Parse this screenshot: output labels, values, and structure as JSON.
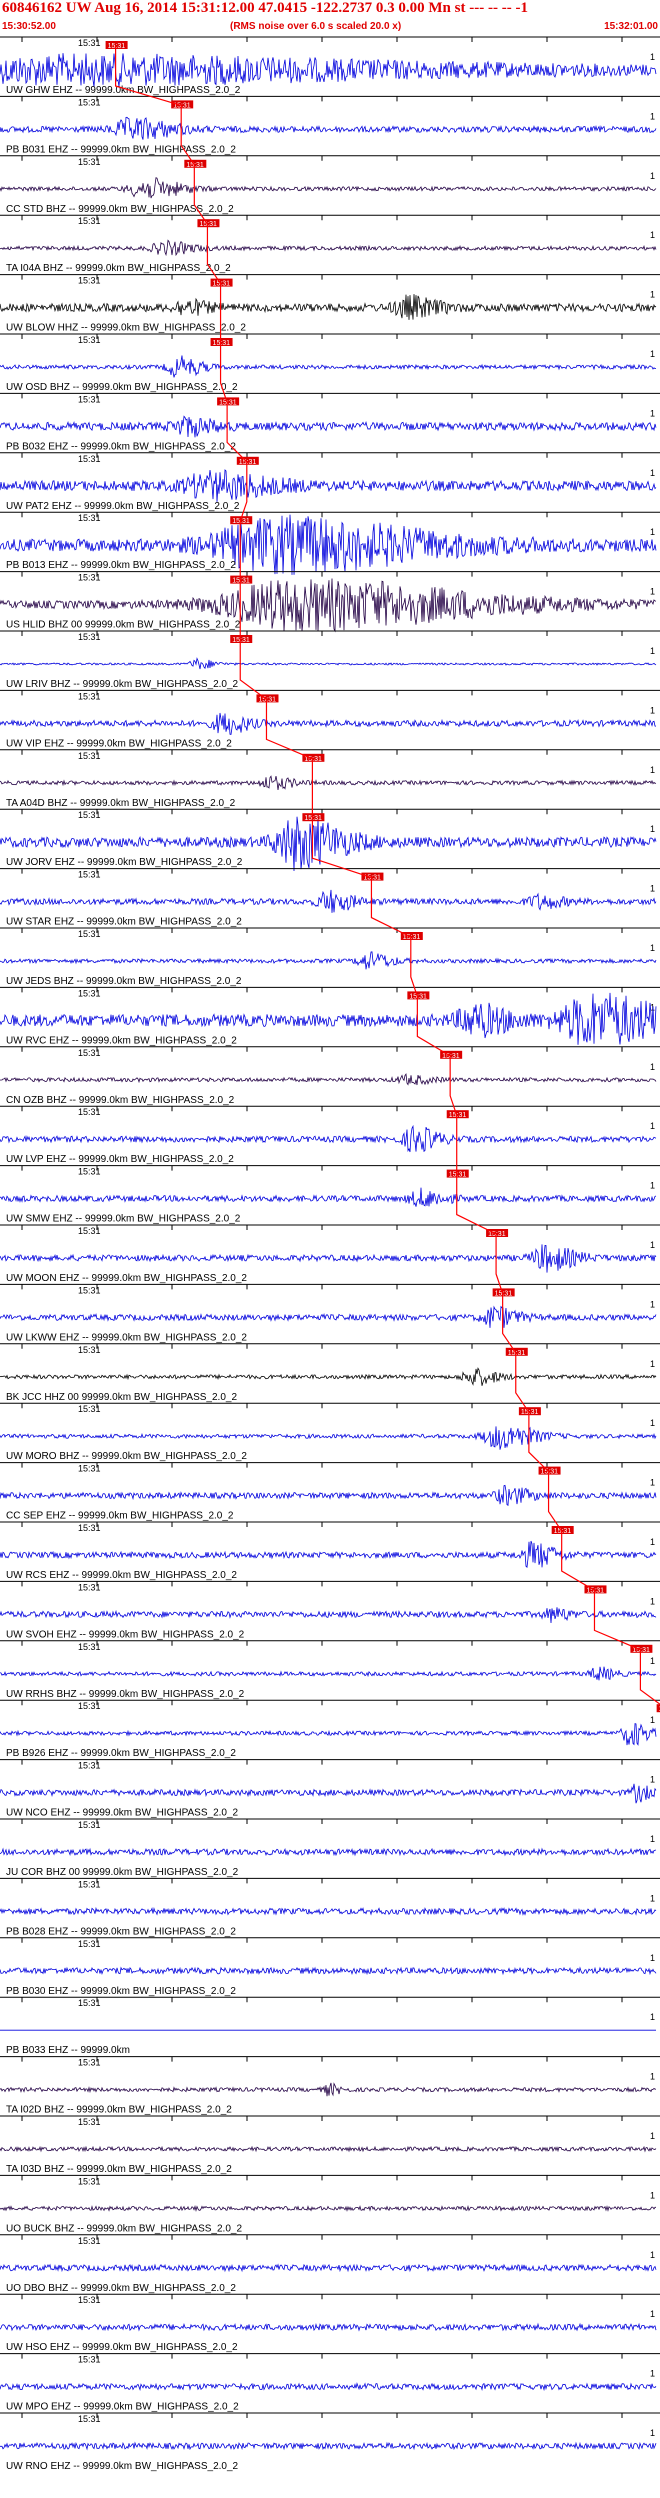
{
  "header": {
    "title": "60846162 UW Aug 16, 2014 15:31:12.00   47.0415 -122.2737   0.3  0.00 Mn st --- -- --  -1",
    "start_time": "15:30:52.00",
    "note": "(RMS noise over 6.0 s scaled 20.0 x)",
    "end_time": "15:32:01.00"
  },
  "colors": {
    "blue": "#0000dd",
    "dark": "#220044",
    "black": "#000000",
    "pick": "#dd0000",
    "line": "#ff0000"
  },
  "chart_data": {
    "type": "line",
    "title": "60846162 UW Aug 16, 2014 15:31:12.00   47.0415 -122.2737   0.3  0.00 Mn st --- -- --  -1",
    "x_range": [
      "15:30:52.00",
      "15:32:01.00"
    ],
    "tick_label": "15:31",
    "end_label": "1",
    "series": [
      {
        "name": "UW GHW EHZ -- 99999.0km BW_HIGHPASS_2.0_2",
        "color": "blue",
        "amp": 5,
        "pick": 0.1,
        "burst": [
          0.11,
          0.55,
          12
        ],
        "burst2": null
      },
      {
        "name": "PB B031 EHZ -- 99999.0km BW_HIGHPASS_2.0_2",
        "color": "blue",
        "amp": 3,
        "pick": 0.2,
        "burst": [
          0.2,
          0.07,
          10
        ],
        "burst2": null
      },
      {
        "name": "CC STD BHZ -- 99999.0km BW_HIGHPASS_2.0_2",
        "color": "dark",
        "amp": 2,
        "pick": 0.22,
        "burst": [
          0.22,
          0.06,
          10
        ],
        "burst2": null
      },
      {
        "name": "TA I04A BHZ -- 99999.0km BW_HIGHPASS_2.0_2",
        "color": "dark",
        "amp": 2,
        "pick": 0.24,
        "burst": [
          0.25,
          0.05,
          6
        ],
        "burst2": null
      },
      {
        "name": "UW BLOW HHZ -- 99999.0km BW_HIGHPASS_2.0_2",
        "color": "black",
        "amp": 4,
        "pick": 0.26,
        "burst": [
          0.62,
          0.05,
          10
        ],
        "burst2": [
          0.28,
          0.04,
          6
        ]
      },
      {
        "name": "UW OSD BHZ -- 99999.0km BW_HIGHPASS_2.0_2",
        "color": "blue",
        "amp": 2,
        "pick": 0.26,
        "burst": [
          0.27,
          0.04,
          10
        ],
        "burst2": null
      },
      {
        "name": "PB B032 EHZ -- 99999.0km BW_HIGHPASS_2.0_2",
        "color": "blue",
        "amp": 4,
        "pick": 0.27,
        "burst": [
          0.28,
          0.05,
          8
        ],
        "burst2": null
      },
      {
        "name": "UW PAT2 EHZ -- 99999.0km BW_HIGHPASS_2.0_2",
        "color": "blue",
        "amp": 5,
        "pick": 0.3,
        "burst": [
          0.32,
          0.1,
          12
        ],
        "burst2": null
      },
      {
        "name": "PB B013 EHZ -- 99999.0km BW_HIGHPASS_2.0_2",
        "color": "blue",
        "amp": 6,
        "pick": 0.29,
        "burst": [
          0.42,
          0.25,
          25
        ],
        "burst2": null
      },
      {
        "name": "US HLID BHZ 00 99999.0km BW_HIGHPASS_2.0_2",
        "color": "dark",
        "amp": 4,
        "pick": 0.29,
        "burst": [
          0.45,
          0.3,
          24
        ],
        "burst2": null
      },
      {
        "name": "UW LRIV BHZ -- 99999.0km BW_HIGHPASS_2.0_2",
        "color": "blue",
        "amp": 1,
        "pick": 0.29,
        "burst": [
          0.3,
          0.03,
          5
        ],
        "burst2": null
      },
      {
        "name": "UW VIP EHZ -- 99999.0km BW_HIGHPASS_2.0_2",
        "color": "blue",
        "amp": 3,
        "pick": 0.33,
        "burst": [
          0.34,
          0.04,
          10
        ],
        "burst2": null
      },
      {
        "name": "TA A04D BHZ -- 99999.0km BW_HIGHPASS_2.0_2",
        "color": "dark",
        "amp": 2,
        "pick": 0.4,
        "burst": [
          0.41,
          0.04,
          6
        ],
        "burst2": null
      },
      {
        "name": "UW JORV EHZ -- 99999.0km BW_HIGHPASS_2.0_2",
        "color": "blue",
        "amp": 5,
        "pick": 0.4,
        "burst": [
          0.45,
          0.08,
          24
        ],
        "burst2": null
      },
      {
        "name": "UW STAR EHZ -- 99999.0km BW_HIGHPASS_2.0_2",
        "color": "blue",
        "amp": 3,
        "pick": 0.49,
        "burst": [
          0.5,
          0.04,
          10
        ],
        "burst2": [
          0.82,
          0.04,
          6
        ]
      },
      {
        "name": "UW JEDS BHZ -- 99999.0km BW_HIGHPASS_2.0_2",
        "color": "blue",
        "amp": 2,
        "pick": 0.55,
        "burst": [
          0.56,
          0.04,
          8
        ],
        "burst2": null
      },
      {
        "name": "UW RVC EHZ -- 99999.0km BW_HIGHPASS_2.0_2",
        "color": "blue",
        "amp": 6,
        "pick": 0.56,
        "burst": [
          0.9,
          0.12,
          24
        ],
        "burst2": [
          0.72,
          0.06,
          14
        ]
      },
      {
        "name": "CN OZB BHZ -- 99999.0km BW_HIGHPASS_2.0_2",
        "color": "dark",
        "amp": 2,
        "pick": 0.61,
        "burst": [
          0.62,
          0.04,
          4
        ],
        "burst2": null
      },
      {
        "name": "UW LVP EHZ -- 99999.0km BW_HIGHPASS_2.0_2",
        "color": "blue",
        "amp": 3,
        "pick": 0.62,
        "burst": [
          0.63,
          0.04,
          12
        ],
        "burst2": null
      },
      {
        "name": "UW SMW EHZ -- 99999.0km BW_HIGHPASS_2.0_2",
        "color": "blue",
        "amp": 3,
        "pick": 0.62,
        "burst": [
          0.64,
          0.04,
          8
        ],
        "burst2": null
      },
      {
        "name": "UW MOON EHZ -- 99999.0km BW_HIGHPASS_2.0_2",
        "color": "blue",
        "amp": 3,
        "pick": 0.68,
        "burst": [
          0.83,
          0.05,
          12
        ],
        "burst2": null
      },
      {
        "name": "UW LKWW EHZ -- 99999.0km BW_HIGHPASS_2.0_2",
        "color": "blue",
        "amp": 3,
        "pick": 0.69,
        "burst": [
          0.75,
          0.04,
          10
        ],
        "burst2": null
      },
      {
        "name": "BK JCC HHZ 00 99999.0km BW_HIGHPASS_2.0_2",
        "color": "black",
        "amp": 2,
        "pick": 0.71,
        "burst": [
          0.72,
          0.04,
          8
        ],
        "burst2": null
      },
      {
        "name": "UW MORO BHZ -- 99999.0km BW_HIGHPASS_2.0_2",
        "color": "blue",
        "amp": 2,
        "pick": 0.73,
        "burst": [
          0.76,
          0.06,
          12
        ],
        "burst2": null
      },
      {
        "name": "CC SEP EHZ -- 99999.0km BW_HIGHPASS_2.0_2",
        "color": "blue",
        "amp": 3,
        "pick": 0.76,
        "burst": [
          0.77,
          0.04,
          8
        ],
        "burst2": null
      },
      {
        "name": "UW RCS EHZ -- 99999.0km BW_HIGHPASS_2.0_2",
        "color": "blue",
        "amp": 3,
        "pick": 0.78,
        "burst": [
          0.81,
          0.04,
          12
        ],
        "burst2": null
      },
      {
        "name": "UW SVOH EHZ -- 99999.0km BW_HIGHPASS_2.0_2",
        "color": "blue",
        "amp": 3,
        "pick": 0.83,
        "burst": [
          0.84,
          0.03,
          6
        ],
        "burst2": null
      },
      {
        "name": "UW RRHS BHZ -- 99999.0km BW_HIGHPASS_2.0_2",
        "color": "blue",
        "amp": 2,
        "pick": 0.9,
        "burst": [
          0.91,
          0.03,
          6
        ],
        "burst2": null
      },
      {
        "name": "PB B926 EHZ -- 99999.0km BW_HIGHPASS_2.0_2",
        "color": "blue",
        "amp": 2,
        "pick": 0.94,
        "burst": [
          0.96,
          0.03,
          12
        ],
        "burst2": null
      },
      {
        "name": "UW NCO EHZ -- 99999.0km BW_HIGHPASS_2.0_2",
        "color": "blue",
        "amp": 3,
        "pick": 0.96,
        "burst": [
          0.97,
          0.02,
          8
        ],
        "burst2": null
      },
      {
        "name": "JU COR BHZ 00 99999.0km BW_HIGHPASS_2.0_2",
        "color": "blue",
        "amp": 3,
        "pick": null,
        "burst": null,
        "burst2": null
      },
      {
        "name": "PB B028 EHZ -- 99999.0km BW_HIGHPASS_2.0_2",
        "color": "blue",
        "amp": 3,
        "pick": null,
        "burst": null,
        "burst2": null
      },
      {
        "name": "PB B030 EHZ -- 99999.0km BW_HIGHPASS_2.0_2",
        "color": "blue",
        "amp": 3,
        "pick": null,
        "burst": null,
        "burst2": null
      },
      {
        "name": "PB B033 EHZ -- 99999.0km",
        "color": "blue",
        "amp": 0,
        "pick": null,
        "burst": null,
        "burst2": null
      },
      {
        "name": "TA I02D BHZ -- 99999.0km BW_HIGHPASS_2.0_2",
        "color": "dark",
        "amp": 2,
        "pick": null,
        "burst": [
          0.5,
          0.02,
          5
        ],
        "burst2": null
      },
      {
        "name": "TA I03D BHZ -- 99999.0km BW_HIGHPASS_2.0_2",
        "color": "dark",
        "amp": 2,
        "pick": null,
        "burst": null,
        "burst2": null
      },
      {
        "name": "UO BUCK BHZ -- 99999.0km BW_HIGHPASS_2.0_2",
        "color": "dark",
        "amp": 2,
        "pick": null,
        "burst": null,
        "burst2": null
      },
      {
        "name": "UO DBO BHZ -- 99999.0km BW_HIGHPASS_2.0_2",
        "color": "blue",
        "amp": 3,
        "pick": null,
        "burst": null,
        "burst2": null
      },
      {
        "name": "UW HSO EHZ -- 99999.0km BW_HIGHPASS_2.0_2",
        "color": "blue",
        "amp": 3,
        "pick": null,
        "burst": null,
        "burst2": null
      },
      {
        "name": "UW MPO EHZ -- 99999.0km BW_HIGHPASS_2.0_2",
        "color": "blue",
        "amp": 3,
        "pick": null,
        "burst": null,
        "burst2": null
      },
      {
        "name": "UW RNO EHZ -- 99999.0km BW_HIGHPASS_2.0_2",
        "color": "blue",
        "amp": 3,
        "pick": null,
        "burst": null,
        "burst2": null
      }
    ]
  }
}
